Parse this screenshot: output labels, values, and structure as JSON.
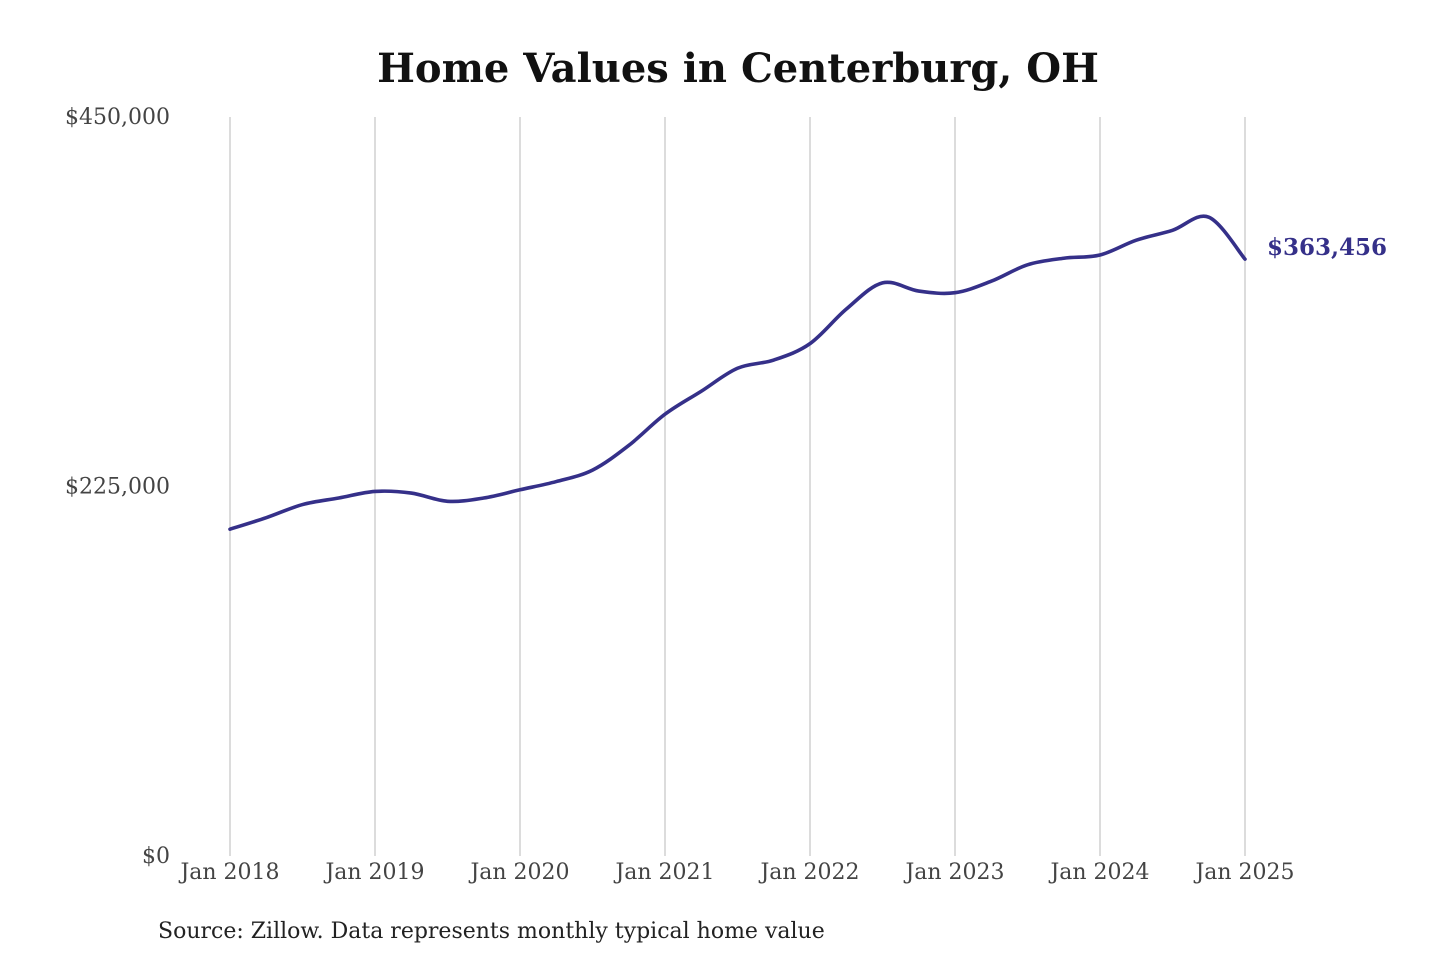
{
  "chart_data": {
    "type": "line",
    "title": "Home Values in Centerburg, OH",
    "xlabel": "",
    "ylabel": "",
    "x_ticks": [
      "Jan 2018",
      "Jan 2019",
      "Jan 2020",
      "Jan 2021",
      "Jan 2022",
      "Jan 2023",
      "Jan 2024",
      "Jan 2025"
    ],
    "y_ticks": [
      "$0",
      "$225,000",
      "$450,000"
    ],
    "y_tick_values": [
      0,
      225000,
      450000
    ],
    "ylim": [
      0,
      450000
    ],
    "xlim": [
      "2018-01",
      "2025-01"
    ],
    "grid": "vertical",
    "line_color": "#353089",
    "series": [
      {
        "x": [
          "2018-01",
          "2018-04",
          "2018-07",
          "2018-10",
          "2019-01",
          "2019-04",
          "2019-07",
          "2019-10",
          "2020-01",
          "2020-04",
          "2020-07",
          "2020-10",
          "2021-01",
          "2021-04",
          "2021-07",
          "2021-10",
          "2022-01",
          "2022-04",
          "2022-07",
          "2022-10",
          "2023-01",
          "2023-04",
          "2023-07",
          "2023-10",
          "2024-01",
          "2024-04",
          "2024-07",
          "2024-10",
          "2025-01"
        ],
        "values": [
          199000,
          206000,
          214000,
          218000,
          222000,
          221000,
          216000,
          218000,
          223000,
          228000,
          235000,
          250000,
          269000,
          283000,
          297000,
          302000,
          312000,
          333000,
          349000,
          344000,
          343000,
          350000,
          360000,
          364000,
          366000,
          375000,
          381000,
          389000,
          363456
        ]
      }
    ],
    "end_label": "$363,456",
    "source": "Source: Zillow. Data represents monthly typical home value"
  }
}
